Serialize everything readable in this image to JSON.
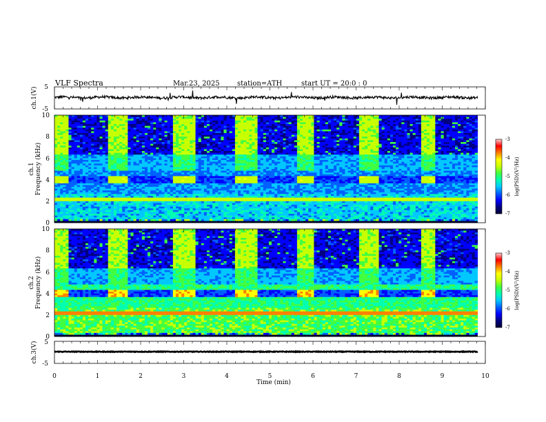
{
  "header": {
    "title": "VLF  Spectra",
    "date": "Mar.23, 2025",
    "station": "station=ATH",
    "start": "start  UT  =   20:0  : 0"
  },
  "colors": {
    "trace": "#000000",
    "colormap": [
      "#000033",
      "#000080",
      "#0000ff",
      "#0060ff",
      "#00c8ff",
      "#00ffb0",
      "#40ff40",
      "#c8ff00",
      "#ffff00",
      "#ff8000",
      "#ff0000",
      "#ffd0d0"
    ]
  },
  "chart_data": [
    {
      "type": "line",
      "panel": "ch1-waveform",
      "ylabel": "ch.1(V)",
      "yticks": [
        "5",
        "-5"
      ],
      "ylim": [
        -5,
        5
      ],
      "xlim": [
        0,
        10
      ],
      "x_extent": 9.82,
      "baseline": 0.2,
      "noise_amplitude": 0.6
    },
    {
      "type": "heatmap",
      "panel": "ch1-spectrogram",
      "ylabel": "ch.1\nFrequency  (kHz)",
      "yticks": [
        "0",
        "2",
        "4",
        "6",
        "8",
        "10"
      ],
      "ylim": [
        0,
        10
      ],
      "xlim": [
        0,
        10
      ],
      "x_extent": 9.82,
      "blocks_start": [
        0.0,
        1.27,
        2.78,
        4.2,
        5.6,
        7.05,
        8.5
      ],
      "blocks_end": [
        0.3,
        1.7,
        3.3,
        4.7,
        6.0,
        7.5,
        8.82
      ],
      "band_khz": [
        3.65,
        4.35
      ],
      "colorbar": {
        "label": "log(PSD)(V²/Hz)",
        "ticks": [
          "-3",
          "-4",
          "-5",
          "-6",
          "-7"
        ],
        "range": [
          -7,
          -3
        ]
      }
    },
    {
      "type": "heatmap",
      "panel": "ch2-spectrogram",
      "ylabel": "ch.2\nFrequency  (kHz)",
      "yticks": [
        "0",
        "2",
        "4",
        "6",
        "8",
        "10"
      ],
      "ylim": [
        0,
        10
      ],
      "xlim": [
        0,
        10
      ],
      "x_extent": 9.82,
      "blocks_start": [
        0.0,
        1.27,
        2.78,
        4.2,
        5.6,
        7.05,
        8.5
      ],
      "blocks_end": [
        0.3,
        1.7,
        3.3,
        4.7,
        6.0,
        7.5,
        8.82
      ],
      "band_khz": [
        3.6,
        4.3
      ],
      "colorbar": {
        "label": "log(PSD)(V²/Hz)",
        "ticks": [
          "-3",
          "-4",
          "-5",
          "-6",
          "-7"
        ],
        "range": [
          -7,
          -3
        ]
      }
    },
    {
      "type": "line",
      "panel": "ch3-waveform",
      "ylabel": "ch.3(V)",
      "yticks": [
        "5",
        "-5"
      ],
      "ylim": [
        -5,
        5
      ],
      "xlim": [
        0,
        10
      ],
      "x_extent": 9.82,
      "baseline": 0.3,
      "noise_amplitude": 0.15
    }
  ],
  "xaxis": {
    "label": "Time  (min)",
    "ticks": [
      "0",
      "1",
      "2",
      "3",
      "4",
      "5",
      "6",
      "7",
      "8",
      "9",
      "10"
    ]
  }
}
